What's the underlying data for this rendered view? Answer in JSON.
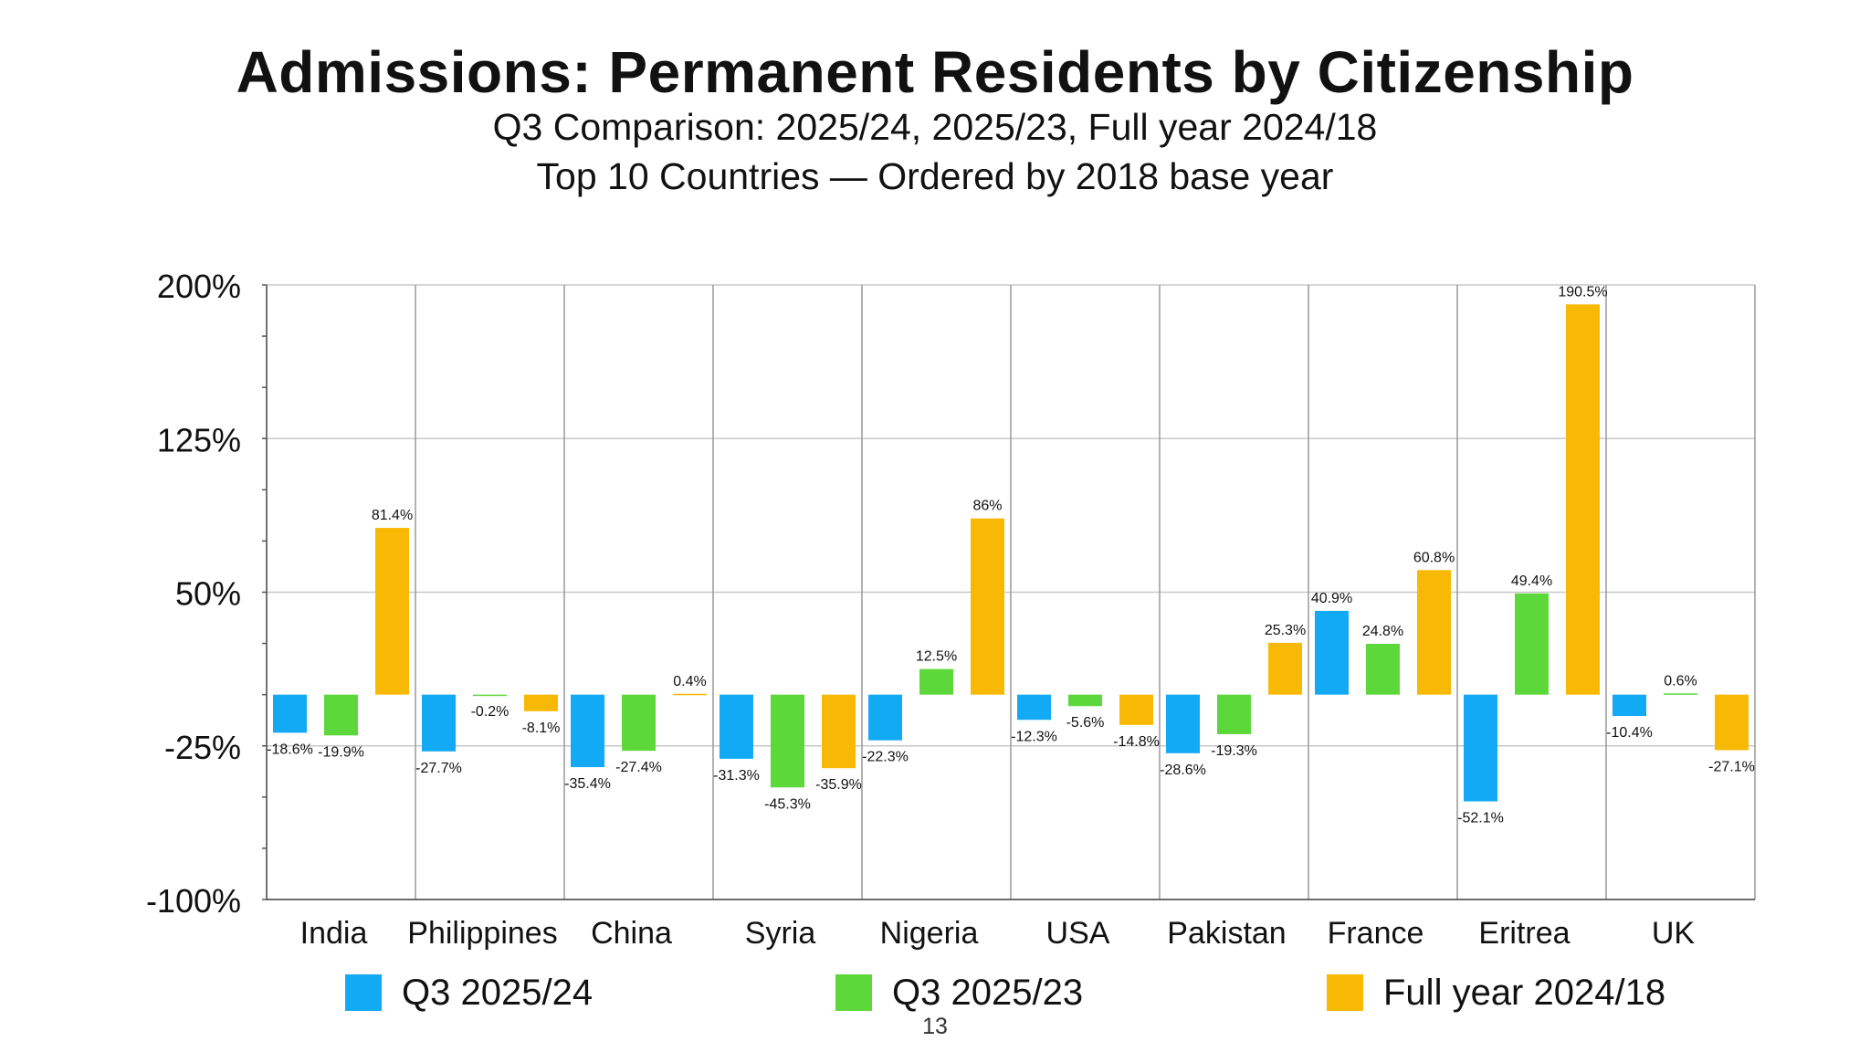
{
  "slide": {
    "title": "Admissions: Permanent Residents by Citizenship",
    "subtitle_line1": "Q3 Comparison: 2025/24, 2025/23, Full year 2024/18",
    "subtitle_line2": "Top 10 Countries — Ordered by 2018 base year",
    "page_number": "13"
  },
  "chart_data": {
    "type": "bar",
    "categories": [
      "India",
      "Philippines",
      "China",
      "Syria",
      "Nigeria",
      "USA",
      "Pakistan",
      "France",
      "Eritrea",
      "UK"
    ],
    "series": [
      {
        "name": "Q3 2025/24",
        "color": "#12A9F5",
        "values": [
          -18.6,
          -27.7,
          -35.4,
          -31.3,
          -22.3,
          -12.3,
          -28.6,
          40.9,
          -52.1,
          -10.4
        ],
        "labels": [
          "-18.6%",
          "-27.7%",
          "-35.4%",
          "-31.3%",
          "-22.3%",
          "-12.3%",
          "-28.6%",
          "40.9%",
          "-52.1%",
          "-10.4%"
        ]
      },
      {
        "name": "Q3 2025/23",
        "color": "#5DD83A",
        "values": [
          -19.9,
          -0.2,
          -27.4,
          -45.3,
          12.5,
          -5.6,
          -19.3,
          24.8,
          49.4,
          0.6
        ],
        "labels": [
          "-19.9%",
          "-0.2%",
          "-27.4%",
          "-45.3%",
          "12.5%",
          "-5.6%",
          "-19.3%",
          "24.8%",
          "49.4%",
          "0.6%"
        ]
      },
      {
        "name": "Full year 2024/18",
        "color": "#F8B905",
        "values": [
          81.4,
          -8.1,
          0.4,
          -35.9,
          86,
          -14.8,
          25.3,
          60.8,
          190.5,
          -27.1
        ],
        "labels": [
          "81.4%",
          "-8.1%",
          "0.4%",
          "-35.9%",
          "86%",
          "-14.8%",
          "25.3%",
          "60.8%",
          "190.5%",
          "-27.1%"
        ]
      }
    ],
    "ylim": [
      -100,
      200
    ],
    "yticks": [
      -100,
      -25,
      50,
      125,
      200
    ],
    "ytick_labels": [
      "-100%",
      "-25%",
      "50%",
      "125%",
      "200%"
    ],
    "grid": true,
    "legend_position": "bottom"
  }
}
